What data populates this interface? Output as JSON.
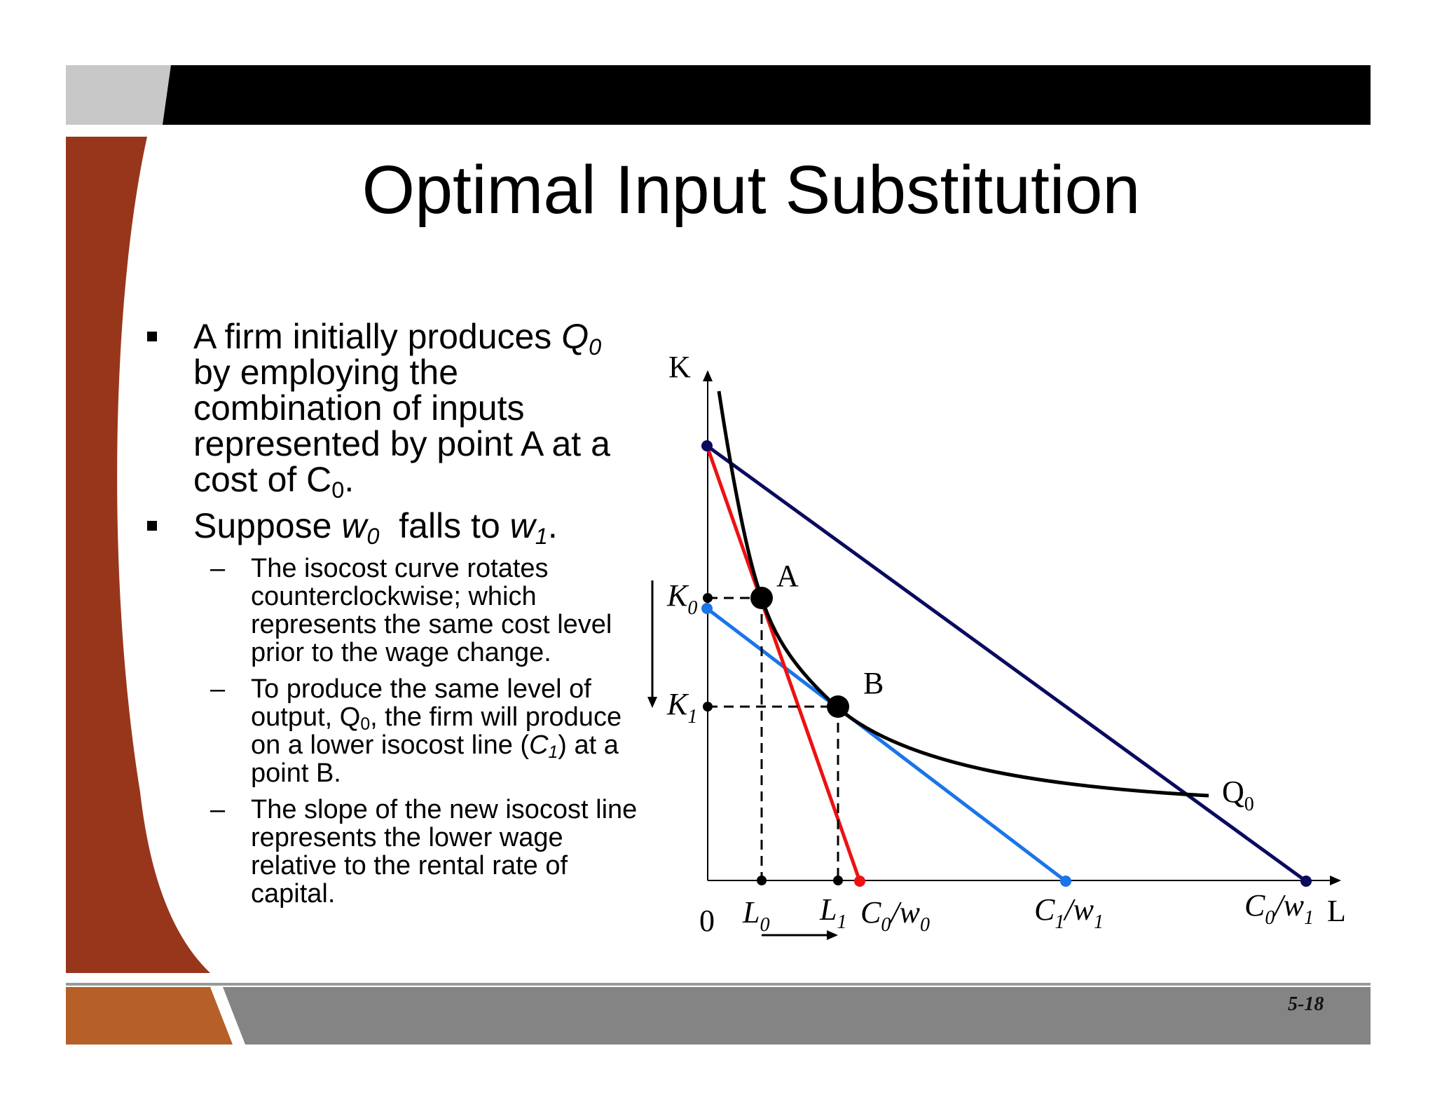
{
  "title": "Optimal Input Substitution",
  "bullets": [
    {
      "text_pre": "A firm initially produces ",
      "q": "Q",
      "q_sub": "0",
      "text_post": " by employing the combination of inputs represented by point A at a cost of C",
      "c_sub": "0",
      "end": "."
    },
    {
      "pre": "Suppose ",
      "w0": "w",
      "w0_sub": "0",
      "mid": "  falls to ",
      "w1": "w",
      "w1_sub": "1",
      "end": ".",
      "sub_items": [
        {
          "text": "The isocost curve rotates counterclockwise; which represents the same cost level prior to the wage change."
        },
        {
          "pre": "To produce the same level of output, Q",
          "q_sub": "0",
          "mid": ", the firm will produce on a lower isocost line (",
          "c": "C",
          "c_sub": "1",
          "post": ") at a point B."
        },
        {
          "text": "The slope of the new isocost line represents the lower wage relative to the rental rate of capital."
        }
      ]
    }
  ],
  "graph": {
    "axis_k": "K",
    "axis_l": "L",
    "origin": "0",
    "point_a": "A",
    "point_b": "B",
    "k0": "K",
    "k0_sub": "0",
    "k1": "K",
    "k1_sub": "1",
    "l0": "L",
    "l0_sub": "0",
    "l1": "L",
    "l1_sub": "1",
    "c0w0": "C",
    "c0w0_sub1": "0",
    "c0w0_mid": "/w",
    "c0w0_sub2": "0",
    "c1w1": "C",
    "c1w1_sub1": "1",
    "c1w1_mid": "/w",
    "c1w1_sub2": "1",
    "c0w1": "C",
    "c0w1_sub1": "0",
    "c0w1_mid": "/w",
    "c0w1_sub2": "1",
    "q0": "Q",
    "q0_sub": "0",
    "colors": {
      "isocost_c0_w0": "#ee1111",
      "isocost_c1_w1": "#1a75e8",
      "isocost_c0_w1": "#0a0a5e",
      "isoquant": "#000000"
    }
  },
  "page_number": "5-18",
  "theme": {
    "top_bar": "#000000",
    "left_band": "#98361c",
    "bottom_bar": "#848484",
    "bottom_accent": "#b65f28",
    "gray_tab": "#c8c8c8"
  }
}
